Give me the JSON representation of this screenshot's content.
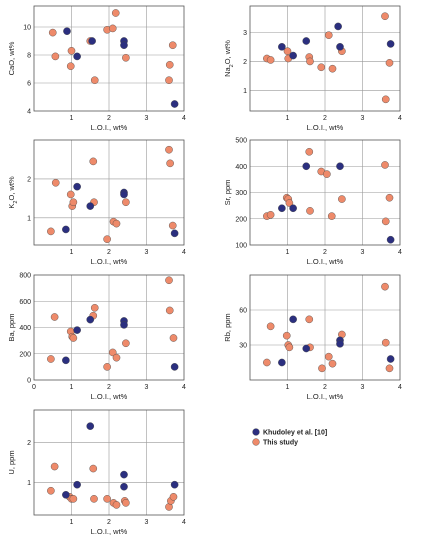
{
  "colors": {
    "khudoley": "#2b2f7f",
    "this_study": "#ee8a6a",
    "stroke": "#555555",
    "grid": "#999999"
  },
  "legend": {
    "entries": [
      "Khudoley et al. [10]",
      "This study"
    ],
    "placement": "bottom-right"
  },
  "chart_data": [
    {
      "type": "scatter",
      "xlabel": "L.O.I., wt%",
      "ylabel": "CaO, wt%",
      "xlim": [
        0,
        4
      ],
      "ylim": [
        4,
        11.5
      ],
      "xticks": [
        0,
        1,
        2,
        3,
        4
      ],
      "yticks": [
        4,
        6,
        8,
        10
      ],
      "xticklabels": [
        "",
        "1",
        "2",
        "3",
        "4"
      ],
      "series": [
        {
          "name": "Khudoley et al. [10]",
          "x": [
            0.88,
            1.15,
            1.55,
            2.4,
            2.4,
            3.75
          ],
          "y": [
            9.7,
            7.9,
            9.0,
            9.0,
            8.7,
            4.5
          ]
        },
        {
          "name": "This study",
          "x": [
            0.5,
            0.57,
            0.98,
            1.0,
            1.5,
            1.62,
            1.95,
            2.1,
            2.18,
            2.45,
            3.6,
            3.62,
            3.7
          ],
          "y": [
            9.6,
            7.9,
            7.2,
            8.3,
            9.0,
            6.2,
            9.8,
            9.9,
            11.0,
            7.8,
            6.2,
            7.3,
            8.7
          ]
        }
      ]
    },
    {
      "type": "scatter",
      "xlabel": "L.O.I., wt%",
      "ylabel": "Na2O, wt%",
      "xlim": [
        0,
        4
      ],
      "ylim": [
        0.3,
        3.9
      ],
      "xticks": [
        0,
        1,
        2,
        3,
        4
      ],
      "yticks": [
        1,
        2,
        3
      ],
      "xticklabels": [
        "",
        "1",
        "2",
        "3",
        "4"
      ],
      "series": [
        {
          "name": "Khudoley et al. [10]",
          "x": [
            0.85,
            1.15,
            1.5,
            2.35,
            2.4,
            3.75
          ],
          "y": [
            2.5,
            2.2,
            2.7,
            3.2,
            2.5,
            2.6
          ]
        },
        {
          "name": "This study",
          "x": [
            0.45,
            0.55,
            1.0,
            1.02,
            1.58,
            1.6,
            1.9,
            2.1,
            2.2,
            2.45,
            3.6,
            3.62,
            3.72
          ],
          "y": [
            2.1,
            2.05,
            2.35,
            2.1,
            2.15,
            2.0,
            1.8,
            2.9,
            1.75,
            2.35,
            3.55,
            0.7,
            1.95
          ]
        }
      ]
    },
    {
      "type": "scatter",
      "xlabel": "L.O.I., wt%",
      "ylabel": "K2O, wt%",
      "xlim": [
        0,
        4
      ],
      "ylim": [
        0.3,
        3.0
      ],
      "xticks": [
        0,
        1,
        2,
        3,
        4
      ],
      "yticks": [
        1,
        2
      ],
      "xticklabels": [
        "",
        "1",
        "2",
        "3",
        "4"
      ],
      "series": [
        {
          "name": "Khudoley et al. [10]",
          "x": [
            0.85,
            1.15,
            1.5,
            2.4,
            2.4,
            3.75
          ],
          "y": [
            0.7,
            1.8,
            1.3,
            1.65,
            1.6,
            0.6
          ]
        },
        {
          "name": "This study",
          "x": [
            0.45,
            0.58,
            0.98,
            1.02,
            1.05,
            1.58,
            1.6,
            1.95,
            2.12,
            2.2,
            2.45,
            3.6,
            3.63,
            3.7
          ],
          "y": [
            0.65,
            1.9,
            1.6,
            1.3,
            1.4,
            2.45,
            1.4,
            0.45,
            0.9,
            0.85,
            1.4,
            2.75,
            2.4,
            0.8
          ]
        }
      ]
    },
    {
      "type": "scatter",
      "xlabel": "L.O.I., wt%",
      "ylabel": "Sr, ppm",
      "xlim": [
        0,
        4
      ],
      "ylim": [
        100,
        500
      ],
      "xticks": [
        0,
        1,
        2,
        3,
        4
      ],
      "yticks": [
        100,
        200,
        300,
        400,
        500
      ],
      "xticklabels": [
        "",
        "1",
        "2",
        "3",
        "4"
      ],
      "series": [
        {
          "name": "Khudoley et al. [10]",
          "x": [
            0.85,
            1.15,
            1.5,
            2.4,
            3.75
          ],
          "y": [
            240,
            240,
            400,
            400,
            120
          ]
        },
        {
          "name": "This study",
          "x": [
            0.45,
            0.55,
            0.98,
            1.02,
            1.05,
            1.58,
            1.6,
            1.9,
            2.05,
            2.18,
            2.45,
            3.6,
            3.62,
            3.72
          ],
          "y": [
            210,
            215,
            280,
            275,
            260,
            455,
            230,
            380,
            370,
            210,
            275,
            405,
            190,
            280
          ]
        }
      ]
    },
    {
      "type": "scatter",
      "xlabel": "L.O.I., wt%",
      "ylabel": "Ba, ppm",
      "xlim": [
        0,
        4
      ],
      "ylim": [
        0,
        800
      ],
      "xticks": [
        0,
        1,
        2,
        3,
        4
      ],
      "yticks": [
        0,
        200,
        400,
        600,
        800
      ],
      "xticklabels": [
        "0",
        "1",
        "2",
        "3",
        "4"
      ],
      "series": [
        {
          "name": "Khudoley et al. [10]",
          "x": [
            0.85,
            1.15,
            1.5,
            2.4,
            2.4,
            3.75
          ],
          "y": [
            150,
            380,
            460,
            450,
            420,
            100
          ]
        },
        {
          "name": "This study",
          "x": [
            0.45,
            0.55,
            0.98,
            1.02,
            1.05,
            1.58,
            1.62,
            1.95,
            2.1,
            2.2,
            2.45,
            3.6,
            3.62,
            3.72
          ],
          "y": [
            160,
            480,
            370,
            330,
            320,
            490,
            550,
            100,
            210,
            170,
            280,
            760,
            530,
            320
          ]
        }
      ]
    },
    {
      "type": "scatter",
      "xlabel": "L.O.I., wt%",
      "ylabel": "Rb, ppm",
      "xlim": [
        0,
        4
      ],
      "ylim": [
        0,
        90
      ],
      "xticks": [
        0,
        1,
        2,
        3,
        4
      ],
      "yticks": [
        30,
        60
      ],
      "xticklabels": [
        "",
        "1",
        "2",
        "3",
        "4"
      ],
      "series": [
        {
          "name": "Khudoley et al. [10]",
          "x": [
            0.85,
            1.15,
            1.5,
            2.4,
            2.4,
            3.75
          ],
          "y": [
            15,
            52,
            27,
            34,
            31,
            18
          ]
        },
        {
          "name": "This study",
          "x": [
            0.45,
            0.55,
            0.98,
            1.02,
            1.05,
            1.58,
            1.6,
            1.92,
            2.1,
            2.2,
            2.45,
            3.6,
            3.62,
            3.72
          ],
          "y": [
            15,
            46,
            38,
            30,
            28,
            52,
            28,
            10,
            20,
            14,
            39,
            80,
            32,
            10
          ]
        }
      ]
    },
    {
      "type": "scatter",
      "xlabel": "L.O.I., wt%",
      "ylabel": "U, ppm",
      "xlim": [
        0,
        4
      ],
      "ylim": [
        0.2,
        2.8
      ],
      "xticks": [
        0,
        1,
        2,
        3,
        4
      ],
      "yticks": [
        1,
        2
      ],
      "xticklabels": [
        "",
        "1",
        "2",
        "3",
        "4"
      ],
      "series": [
        {
          "name": "Khudoley et al. [10]",
          "x": [
            0.85,
            1.15,
            1.5,
            2.4,
            2.4,
            3.75
          ],
          "y": [
            0.7,
            0.95,
            2.4,
            1.2,
            0.9,
            0.95
          ]
        },
        {
          "name": "This study",
          "x": [
            0.45,
            0.55,
            0.95,
            1.0,
            1.05,
            1.58,
            1.6,
            1.95,
            2.12,
            2.2,
            2.42,
            2.45,
            3.6,
            3.65,
            3.72
          ],
          "y": [
            0.8,
            1.4,
            0.65,
            0.6,
            0.6,
            1.35,
            0.6,
            0.6,
            0.5,
            0.45,
            0.55,
            0.5,
            0.4,
            0.55,
            0.65
          ]
        }
      ]
    }
  ]
}
